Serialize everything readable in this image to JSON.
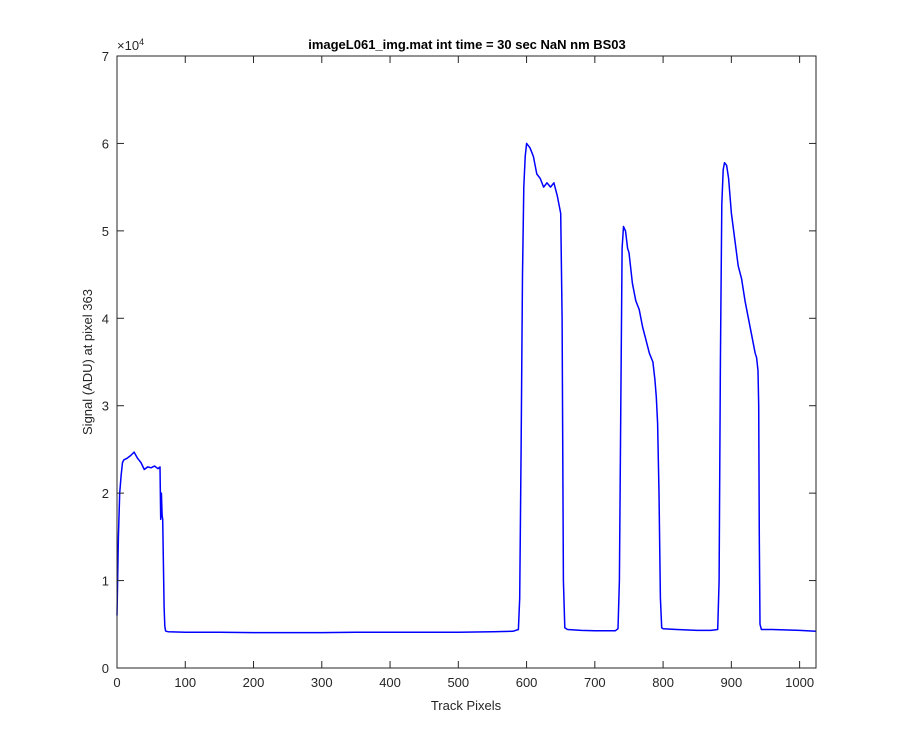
{
  "chart_data": {
    "type": "line",
    "title": "imageL061_img.mat int time = 30 sec  NaN nm BS03",
    "xlabel": "Track Pixels",
    "ylabel": "Signal (ADU) at pixel 363",
    "xlim": [
      0,
      1024
    ],
    "ylim": [
      0,
      70000
    ],
    "y_exponent_label": "×10",
    "y_exponent_power": "4",
    "x_ticks": [
      0,
      100,
      200,
      300,
      400,
      500,
      600,
      700,
      800,
      900,
      1000
    ],
    "x_tick_labels": [
      "0",
      "100",
      "200",
      "300",
      "400",
      "500",
      "600",
      "700",
      "800",
      "900",
      "1000"
    ],
    "y_ticks": [
      0,
      10000,
      20000,
      30000,
      40000,
      50000,
      60000,
      70000
    ],
    "y_tick_labels": [
      "0",
      "1",
      "2",
      "3",
      "4",
      "5",
      "6",
      "7"
    ],
    "grid": false,
    "line_color": "#0000ff",
    "series": [
      {
        "x": [
          0,
          2,
          4,
          6,
          8,
          10,
          15,
          20,
          25,
          30,
          35,
          40,
          45,
          50,
          55,
          60,
          63,
          64,
          65,
          66,
          67,
          68,
          69,
          70,
          71,
          72,
          75,
          100,
          150,
          200,
          250,
          300,
          350,
          400,
          450,
          500,
          550,
          580,
          588,
          590,
          592,
          594,
          596,
          598,
          600,
          605,
          610,
          615,
          620,
          625,
          630,
          635,
          640,
          645,
          650,
          652,
          654,
          656,
          660,
          680,
          700,
          720,
          730,
          734,
          736,
          738,
          740,
          742,
          745,
          748,
          750,
          755,
          760,
          765,
          770,
          775,
          780,
          785,
          788,
          790,
          792,
          794,
          796,
          798,
          800,
          820,
          850,
          870,
          880,
          882,
          884,
          886,
          888,
          890,
          893,
          896,
          900,
          905,
          910,
          915,
          920,
          925,
          930,
          935,
          937,
          939,
          940,
          941,
          942,
          944,
          960,
          1000,
          1024
        ],
        "y": [
          6000,
          15000,
          20000,
          22000,
          23500,
          23800,
          24000,
          24300,
          24700,
          24000,
          23500,
          22700,
          23000,
          22900,
          23100,
          22800,
          23000,
          17000,
          20000,
          17500,
          17000,
          12000,
          7000,
          4800,
          4300,
          4200,
          4150,
          4100,
          4100,
          4050,
          4050,
          4050,
          4100,
          4100,
          4100,
          4100,
          4150,
          4200,
          4400,
          8000,
          25000,
          45000,
          55000,
          58500,
          60000,
          59500,
          58500,
          56500,
          56000,
          55000,
          55500,
          55000,
          55500,
          54000,
          52000,
          40000,
          10000,
          4600,
          4400,
          4300,
          4250,
          4250,
          4250,
          4500,
          10000,
          30000,
          48000,
          50500,
          50000,
          48000,
          47500,
          44000,
          42000,
          41000,
          39000,
          37500,
          36000,
          35000,
          33000,
          31000,
          28000,
          20000,
          8000,
          4600,
          4500,
          4400,
          4300,
          4300,
          4400,
          10000,
          35000,
          53000,
          57000,
          57800,
          57500,
          56000,
          52000,
          49000,
          46000,
          44500,
          42000,
          40000,
          38000,
          36000,
          35500,
          34000,
          30000,
          15000,
          5000,
          4400,
          4400,
          4300,
          4200
        ]
      }
    ]
  }
}
